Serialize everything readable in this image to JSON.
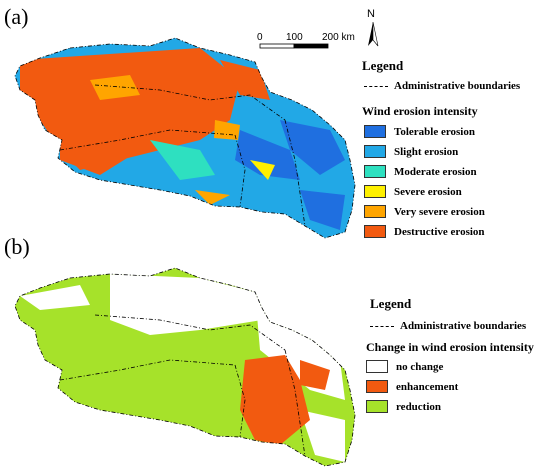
{
  "panel_a": {
    "label": "(a)",
    "legend_title": "Legend",
    "admin_boundaries": "Administrative boundaries",
    "intensity_title": "Wind erosion intensity",
    "classes": [
      {
        "label": "Tolerable erosion",
        "color": "#1f6fe0"
      },
      {
        "label": "Slight erosion",
        "color": "#22a8e6"
      },
      {
        "label": "Moderate erosion",
        "color": "#2ee0c0"
      },
      {
        "label": "Severe erosion",
        "color": "#fff000"
      },
      {
        "label": "Very severe erosion",
        "color": "#ffa500"
      },
      {
        "label": "Destructive erosion",
        "color": "#f25a10"
      }
    ],
    "scale": {
      "tick0": "0",
      "tick1": "100",
      "tick2": "200 km"
    },
    "north": "N"
  },
  "panel_b": {
    "label": "(b)",
    "legend_title": "Legend",
    "admin_boundaries": "Administrative boundaries",
    "change_title": "Change in wind erosion intensity",
    "classes": [
      {
        "label": "no change",
        "color": "#ffffff"
      },
      {
        "label": "enhancement",
        "color": "#f25a10"
      },
      {
        "label": "reduction",
        "color": "#a6e22a"
      }
    ]
  }
}
